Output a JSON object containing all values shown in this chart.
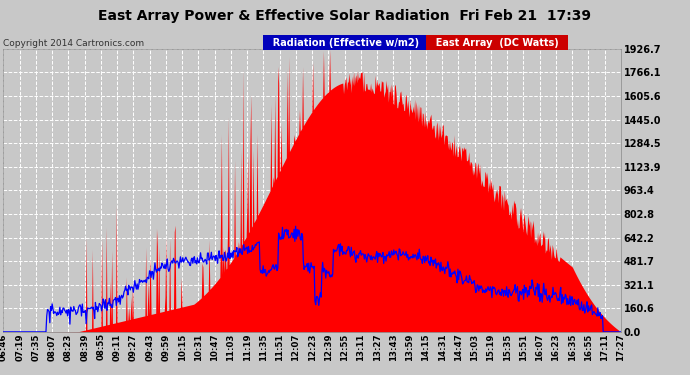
{
  "title": "East Array Power & Effective Solar Radiation  Fri Feb 21  17:39",
  "copyright": "Copyright 2014 Cartronics.com",
  "legend_radiation": "Radiation (Effective w/m2)",
  "legend_east": "East Array  (DC Watts)",
  "y_max": 1926.7,
  "y_min": 0.0,
  "y_ticks": [
    0.0,
    160.6,
    321.1,
    481.7,
    642.2,
    802.8,
    963.4,
    1123.9,
    1284.5,
    1445.0,
    1605.6,
    1766.1,
    1926.7
  ],
  "background_color": "#c8c8c8",
  "plot_bg_color": "#c8c8c8",
  "grid_color": "#aaaaaa",
  "red_color": "#ff0000",
  "blue_color": "#0000ff",
  "title_color": "#000000",
  "x_labels": [
    "06:46",
    "07:19",
    "07:35",
    "08:07",
    "08:23",
    "08:39",
    "08:55",
    "09:11",
    "09:27",
    "09:43",
    "09:59",
    "10:15",
    "10:31",
    "10:47",
    "11:03",
    "11:19",
    "11:35",
    "11:51",
    "12:07",
    "12:23",
    "12:39",
    "12:55",
    "13:11",
    "13:27",
    "13:43",
    "13:59",
    "14:15",
    "14:31",
    "14:47",
    "15:03",
    "15:19",
    "15:35",
    "15:51",
    "16:07",
    "16:23",
    "16:35",
    "16:55",
    "17:11",
    "17:27"
  ]
}
